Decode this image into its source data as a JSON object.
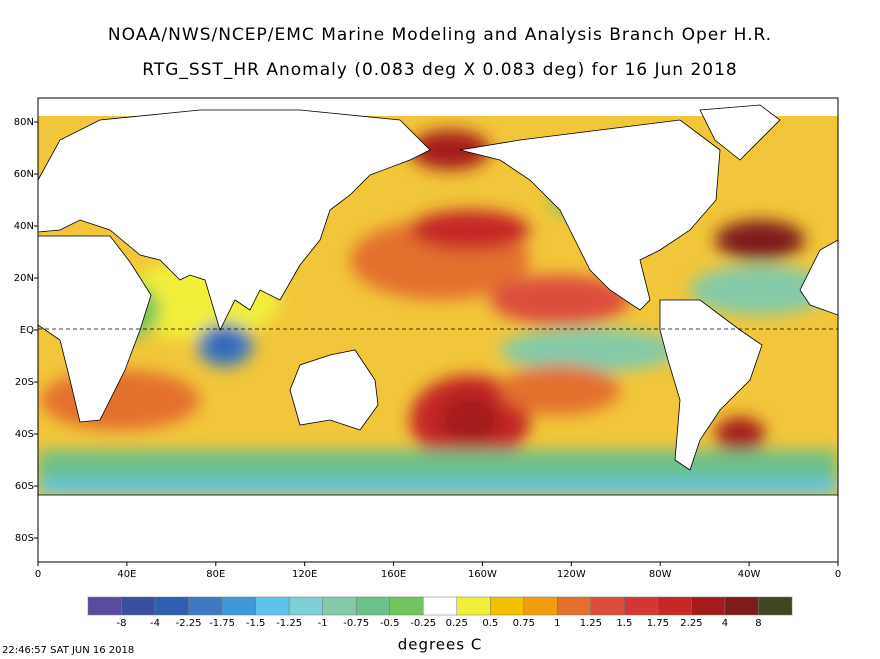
{
  "header": {
    "title": "NOAA/NWS/NCEP/EMC Marine Modeling and Analysis Branch Oper H.R.",
    "subtitle": "RTG_SST_HR Anomaly (0.083 deg X 0.083 deg) for 16 Jun 2018"
  },
  "map": {
    "lat_labels": [
      "80N",
      "60N",
      "40N",
      "20N",
      "EQ",
      "20S",
      "40S",
      "60S",
      "80S"
    ],
    "lon_labels": [
      "0",
      "40E",
      "80E",
      "120E",
      "160E",
      "160W",
      "120W",
      "80W",
      "40W",
      "0"
    ]
  },
  "colorbar": {
    "colors": [
      "#5b4b9e",
      "#3a4fa0",
      "#2f5fb2",
      "#3f79c2",
      "#3d9ad6",
      "#5ec2ea",
      "#7fd0d6",
      "#84caa9",
      "#6cc08a",
      "#72c45e",
      "#ffffff",
      "#f2ef3a",
      "#f3c100",
      "#f09e10",
      "#e4702e",
      "#dd4d3c",
      "#d43636",
      "#c52626",
      "#a51a1a",
      "#7e1c1c",
      "#3f4620"
    ],
    "labels": [
      "-8",
      "-4",
      "-2.25",
      "-1.75",
      "-1.5",
      "-1.25",
      "-1",
      "-0.75",
      "-0.5",
      "-0.25",
      "0.25",
      "0.5",
      "0.75",
      "1",
      "1.25",
      "1.5",
      "1.75",
      "2.25",
      "4",
      "8"
    ],
    "unit": "degrees C"
  },
  "footer": {
    "timestamp": "22:46:57  SAT JUN 16 2018"
  }
}
